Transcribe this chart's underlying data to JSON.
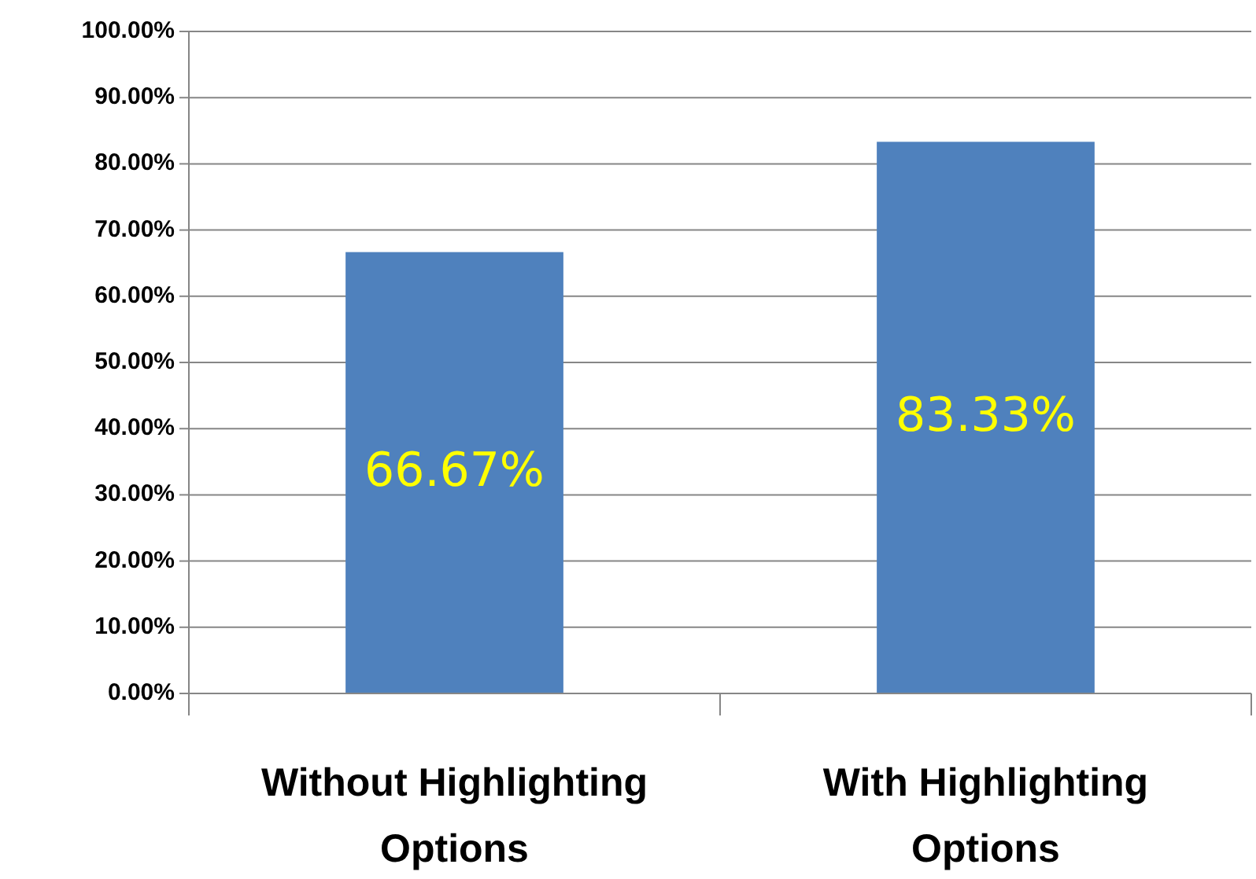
{
  "chart_data": {
    "type": "bar",
    "categories": [
      "Without Highlighting Options",
      "With Highlighting Options"
    ],
    "values": [
      66.67,
      83.33
    ],
    "color": "#4f81bd",
    "value_labels": [
      "66.67%",
      "83.33%"
    ],
    "ylim": [
      0,
      100
    ],
    "yticks": [
      {
        "value": 0,
        "label": "0.00%"
      },
      {
        "value": 10,
        "label": "10.00%"
      },
      {
        "value": 20,
        "label": "20.00%"
      },
      {
        "value": 30,
        "label": "30.00%"
      },
      {
        "value": 40,
        "label": "40.00%"
      },
      {
        "value": 50,
        "label": "50.00%"
      },
      {
        "value": 60,
        "label": "60.00%"
      },
      {
        "value": 70,
        "label": "70.00%"
      },
      {
        "value": 80,
        "label": "80.00%"
      },
      {
        "value": 90,
        "label": "90.00%"
      },
      {
        "value": 100,
        "label": "100.00%"
      }
    ],
    "grid": "y"
  }
}
